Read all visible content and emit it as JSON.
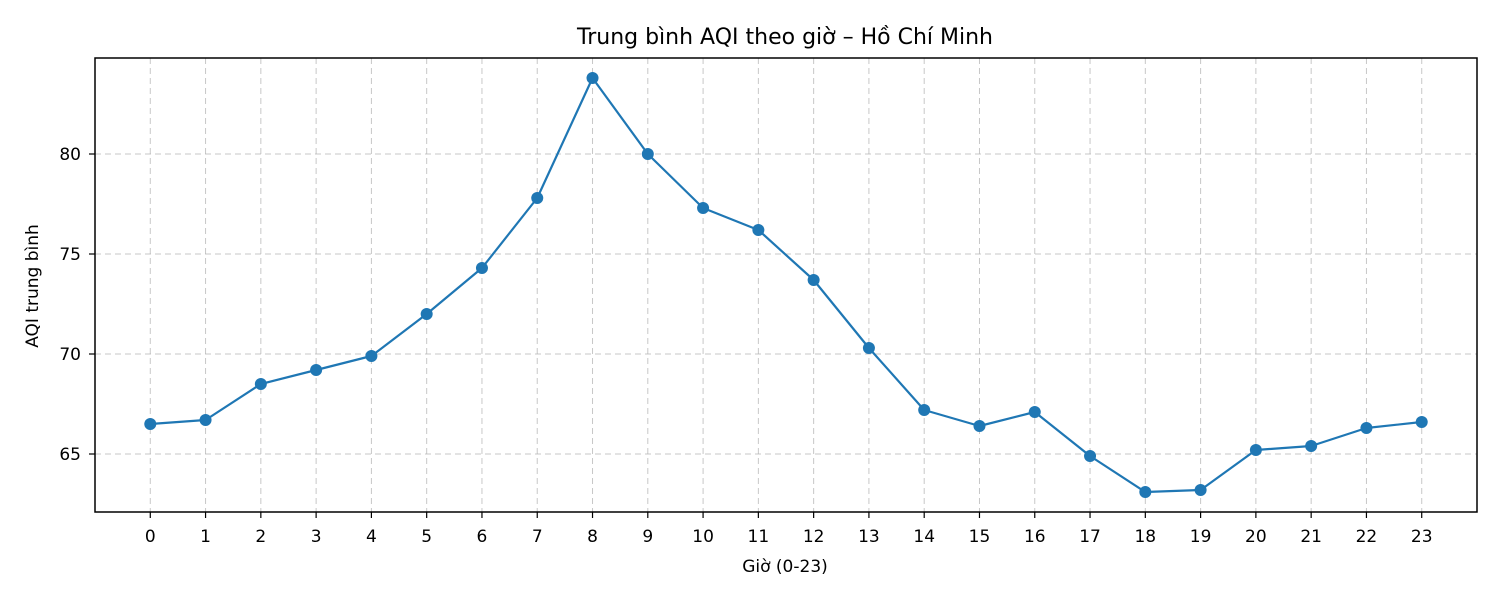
{
  "chart_data": {
    "type": "line",
    "title": "Trung bình AQI theo giờ – Hồ Chí Minh",
    "xlabel": "Giờ (0-23)",
    "ylabel": "AQI trung bình",
    "x": [
      0,
      1,
      2,
      3,
      4,
      5,
      6,
      7,
      8,
      9,
      10,
      11,
      12,
      13,
      14,
      15,
      16,
      17,
      18,
      19,
      20,
      21,
      22,
      23
    ],
    "series": [
      {
        "values": [
          66.5,
          66.7,
          68.5,
          69.2,
          69.9,
          72.0,
          74.3,
          77.8,
          83.8,
          80.0,
          77.3,
          76.2,
          73.7,
          70.3,
          67.2,
          66.4,
          67.1,
          64.9,
          63.1,
          63.2,
          65.2,
          65.4,
          66.3,
          66.6
        ],
        "color": "#1f77b4"
      }
    ],
    "xlim": [
      -1,
      24
    ],
    "ylim": [
      62.1,
      84.8
    ],
    "x_ticks": [
      "0",
      "1",
      "2",
      "3",
      "4",
      "5",
      "6",
      "7",
      "8",
      "9",
      "10",
      "11",
      "12",
      "13",
      "14",
      "15",
      "16",
      "17",
      "18",
      "19",
      "20",
      "21",
      "22",
      "23"
    ],
    "y_ticks": [
      "65",
      "70",
      "75",
      "80"
    ],
    "grid": true
  }
}
